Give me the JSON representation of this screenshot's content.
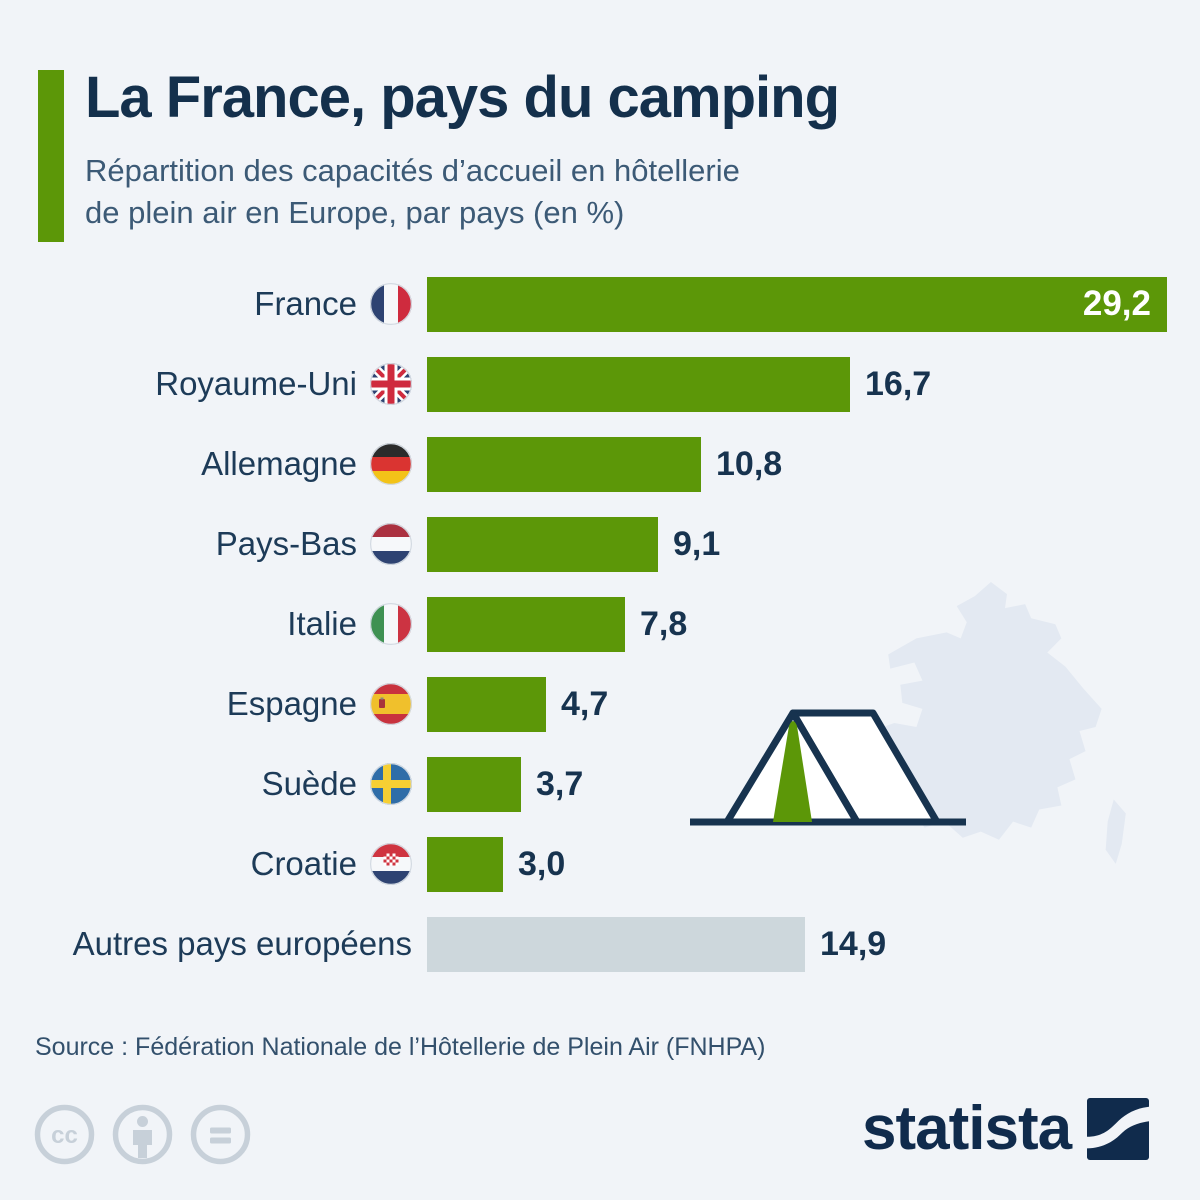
{
  "header": {
    "title": "La France, pays du camping",
    "subtitle_line1": "Répartition des capacités d’accueil en hôtellerie",
    "subtitle_line2": "de plein air en Europe, par pays (en %)"
  },
  "chart_data": {
    "type": "bar",
    "orientation": "horizontal",
    "title": "La France, pays du camping",
    "subtitle": "Répartition des capacités d’accueil en hôtellerie de plein air en Europe, par pays (en %)",
    "unit": "%",
    "xlim": [
      0,
      29.2
    ],
    "grid": false,
    "legend": false,
    "categories": [
      "France",
      "Royaume-Uni",
      "Allemagne",
      "Pays-Bas",
      "Italie",
      "Espagne",
      "Suède",
      "Croatie",
      "Autres pays européens"
    ],
    "values": [
      29.2,
      16.7,
      10.8,
      9.1,
      7.8,
      4.7,
      3.7,
      3.0,
      14.9
    ],
    "rows": [
      {
        "label": "France",
        "flag": "france-flag-icon",
        "value": 29.2,
        "value_label": "29,2",
        "bar_style": "green",
        "value_position": "inside"
      },
      {
        "label": "Royaume-Uni",
        "flag": "uk-flag-icon",
        "value": 16.7,
        "value_label": "16,7",
        "bar_style": "green",
        "value_position": "outside"
      },
      {
        "label": "Allemagne",
        "flag": "germany-flag-icon",
        "value": 10.8,
        "value_label": "10,8",
        "bar_style": "green",
        "value_position": "outside"
      },
      {
        "label": "Pays-Bas",
        "flag": "netherlands-flag-icon",
        "value": 9.1,
        "value_label": "9,1",
        "bar_style": "green",
        "value_position": "outside"
      },
      {
        "label": "Italie",
        "flag": "italy-flag-icon",
        "value": 7.8,
        "value_label": "7,8",
        "bar_style": "green",
        "value_position": "outside"
      },
      {
        "label": "Espagne",
        "flag": "spain-flag-icon",
        "value": 4.7,
        "value_label": "4,7",
        "bar_style": "green",
        "value_position": "outside"
      },
      {
        "label": "Suède",
        "flag": "sweden-flag-icon",
        "value": 3.7,
        "value_label": "3,7",
        "bar_style": "green",
        "value_position": "outside"
      },
      {
        "label": "Croatie",
        "flag": "croatia-flag-icon",
        "value": 3.0,
        "value_label": "3,0",
        "bar_style": "green",
        "value_position": "outside"
      },
      {
        "label": "Autres pays européens",
        "flag": null,
        "value": 14.9,
        "value_label": "14,9",
        "bar_style": "gray",
        "value_position": "outside"
      }
    ]
  },
  "decorations": {
    "map": "france-map-silhouette",
    "tent": "tent-icon"
  },
  "source": "Source : Fédération Nationale de l’Hôtellerie de Plein Air (FNHPA)",
  "footer": {
    "license_icons": [
      "cc-icon",
      "attribution-icon",
      "no-derivatives-icon"
    ],
    "brand": "statista"
  },
  "colors": {
    "background": "#f1f4f8",
    "bar_green": "#5c9708",
    "bar_gray": "#cdd7dc",
    "accent_green": "#5c9708",
    "title_navy": "#14304c",
    "subtitle_blue": "#3c5a76",
    "value_navy": "#17334f",
    "outline_navy": "#17334f",
    "map_fill": "#e3e9f2",
    "license_gray": "#c7d0d9",
    "brand_navy": "#102b4c"
  }
}
